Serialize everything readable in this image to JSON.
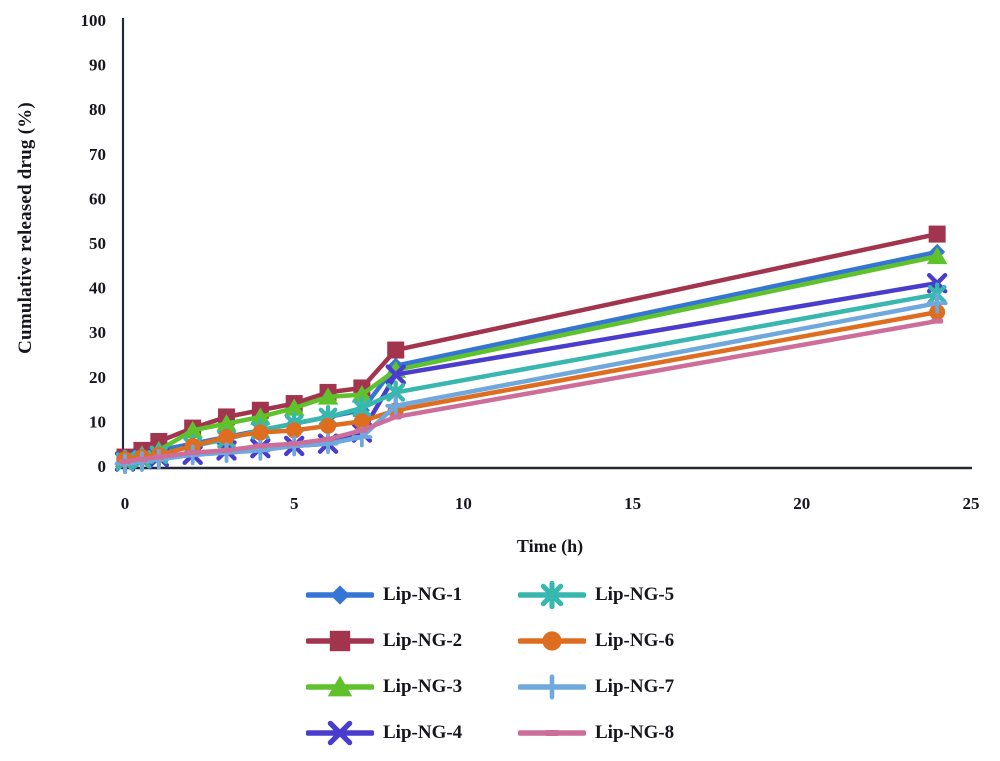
{
  "chart_data": {
    "type": "line",
    "title": "",
    "xlabel": "Time (h)",
    "ylabel": "Cumulative released drug (%)",
    "xlim": [
      0,
      25
    ],
    "ylim": [
      0,
      100
    ],
    "xticks": [
      0,
      5,
      10,
      15,
      20,
      25
    ],
    "yticks": [
      0,
      10,
      20,
      30,
      40,
      50,
      60,
      70,
      80,
      90,
      100
    ],
    "grid": false,
    "legend_position": "bottom-center",
    "axis_color": "#232a33",
    "x": [
      0,
      0.5,
      1,
      2,
      3,
      4,
      5,
      6,
      7,
      8,
      24
    ],
    "series": [
      {
        "name": "Lip-NG-1",
        "color": "#3575d3",
        "marker": "diamond",
        "values": [
          1.5,
          2.5,
          3.5,
          5,
          6.5,
          8,
          9.5,
          11,
          12.5,
          22.5,
          48
        ]
      },
      {
        "name": "Lip-NG-2",
        "color": "#a3344e",
        "marker": "square",
        "values": [
          2,
          3.5,
          5.5,
          8.5,
          11,
          12.5,
          14,
          16.5,
          17.5,
          26,
          52
        ]
      },
      {
        "name": "Lip-NG-3",
        "color": "#5fc22d",
        "marker": "triangle",
        "values": [
          1.5,
          2.5,
          3.5,
          8,
          9.5,
          11,
          13,
          15.5,
          16,
          21.5,
          47
        ]
      },
      {
        "name": "Lip-NG-4",
        "color": "#4a3ccd",
        "marker": "x",
        "values": [
          1,
          1.5,
          2,
          2.5,
          3.5,
          4,
          4.5,
          5,
          7.5,
          20.5,
          41
        ]
      },
      {
        "name": "Lip-NG-5",
        "color": "#38b7ae",
        "marker": "asterisk",
        "values": [
          1,
          1.5,
          2.5,
          4.5,
          6,
          8,
          9.5,
          11,
          13,
          16.5,
          38.5
        ]
      },
      {
        "name": "Lip-NG-6",
        "color": "#df6d20",
        "marker": "circle",
        "values": [
          1.5,
          2,
          2.5,
          4.5,
          6.5,
          7.5,
          8,
          9,
          10,
          12.5,
          34.5
        ]
      },
      {
        "name": "Lip-NG-7",
        "color": "#6fa8dc",
        "marker": "plus",
        "values": [
          0.5,
          1,
          1.5,
          2.5,
          3,
          3.5,
          4.5,
          5,
          6.5,
          13.5,
          36.5
        ]
      },
      {
        "name": "Lip-NG-8",
        "color": "#cc6e99",
        "marker": "dash",
        "values": [
          1,
          1.5,
          2,
          3,
          3.5,
          4.5,
          5,
          6,
          8,
          11,
          32.5
        ]
      }
    ]
  }
}
